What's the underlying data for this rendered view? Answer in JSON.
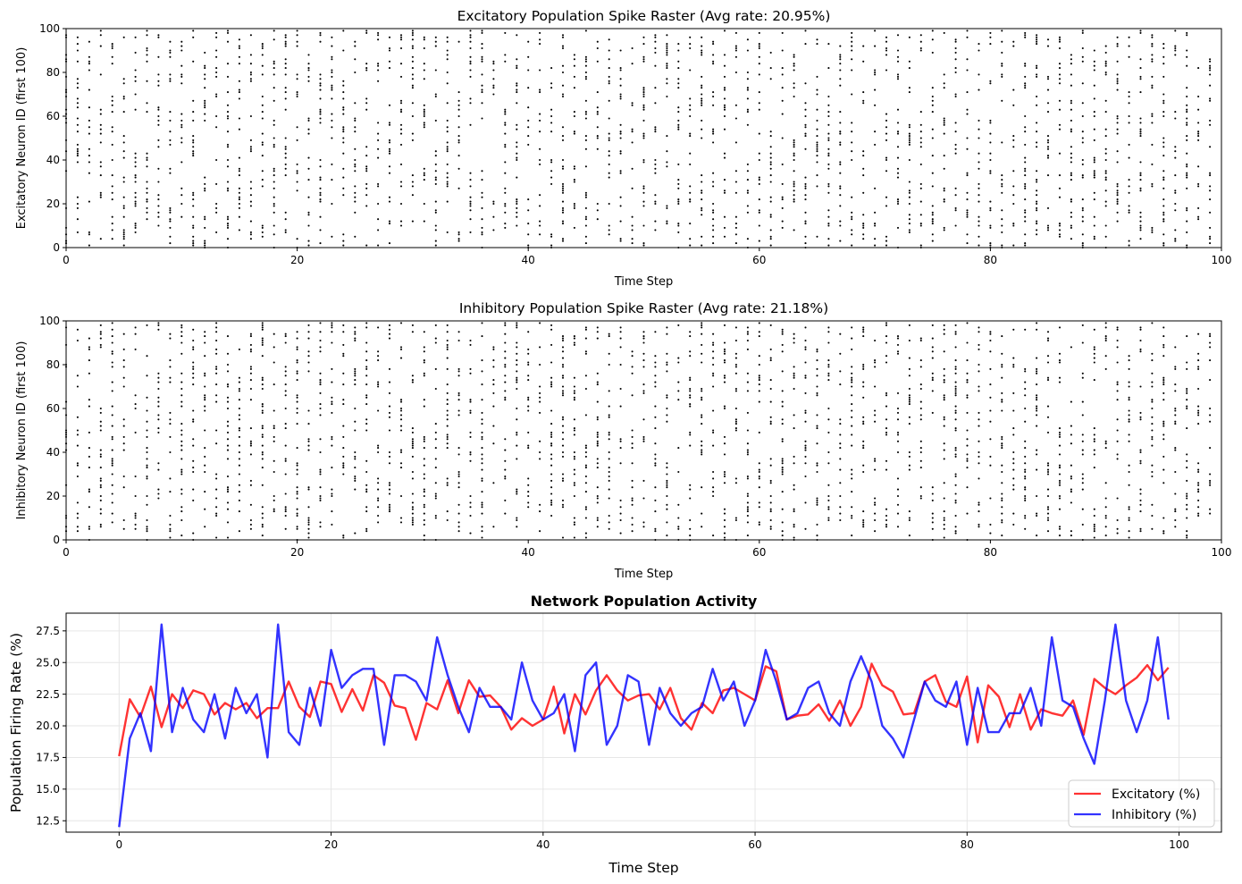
{
  "chart_data": [
    {
      "type": "scatter",
      "title": "Excitatory Population Spike Raster (Avg rate: 20.95%)",
      "xlabel": "Time Step",
      "ylabel": "Excitatory Neuron ID (first 100)",
      "xlim": [
        0,
        100
      ],
      "ylim": [
        0,
        100
      ],
      "xticks": [
        "0",
        "20",
        "40",
        "60",
        "80",
        "100"
      ],
      "yticks": [
        "0",
        "20",
        "40",
        "60",
        "80",
        "100"
      ],
      "grid": false,
      "spike_rate": 0.2095,
      "time_steps": 100,
      "neurons": 100,
      "marker_color": "#000000"
    },
    {
      "type": "scatter",
      "title": "Inhibitory Population Spike Raster (Avg rate: 21.18%)",
      "xlabel": "Time Step",
      "ylabel": "Inhibitory Neuron ID (first 100)",
      "xlim": [
        0,
        100
      ],
      "ylim": [
        0,
        100
      ],
      "xticks": [
        "0",
        "20",
        "40",
        "60",
        "80",
        "100"
      ],
      "yticks": [
        "0",
        "20",
        "40",
        "60",
        "80",
        "100"
      ],
      "grid": false,
      "spike_rate": 0.2118,
      "time_steps": 100,
      "neurons": 100,
      "marker_color": "#000000"
    },
    {
      "type": "line",
      "title": "Network Population Activity",
      "xlabel": "Time Step",
      "ylabel": "Population Firing Rate (%)",
      "xlim": [
        -5,
        104
      ],
      "ylim": [
        11.6,
        28.9
      ],
      "xticks": [
        "0",
        "20",
        "40",
        "60",
        "80",
        "100"
      ],
      "yticks": [
        "12.5",
        "15.0",
        "17.5",
        "20.0",
        "22.5",
        "25.0",
        "27.5"
      ],
      "grid": true,
      "legend_position": "lower-right",
      "series": [
        {
          "name": "Excitatory (%)",
          "color": "#ff0000",
          "values": [
            17.6,
            22.1,
            20.7,
            23.1,
            19.9,
            22.5,
            21.4,
            22.8,
            22.5,
            20.9,
            21.8,
            21.3,
            21.8,
            20.6,
            21.4,
            21.4,
            23.5,
            21.5,
            20.7,
            23.5,
            23.3,
            21.1,
            22.9,
            21.2,
            24.0,
            23.4,
            21.6,
            21.4,
            18.9,
            21.8,
            21.3,
            23.6,
            21.0,
            23.6,
            22.3,
            22.4,
            21.5,
            19.7,
            20.6,
            20.0,
            20.5,
            23.1,
            19.4,
            22.5,
            20.9,
            22.8,
            24.0,
            22.8,
            22.0,
            22.4,
            22.5,
            21.3,
            23.0,
            20.6,
            19.7,
            21.8,
            21.0,
            22.8,
            23.0,
            22.5,
            22.0,
            24.7,
            24.3,
            20.5,
            20.8,
            20.9,
            21.7,
            20.4,
            22.0,
            20.0,
            21.5,
            24.9,
            23.2,
            22.7,
            20.9,
            21.0,
            23.5,
            24.0,
            21.9,
            21.5,
            23.9,
            18.7,
            23.2,
            22.3,
            19.9,
            22.5,
            19.7,
            21.3,
            21.0,
            20.8,
            22.0,
            19.3,
            23.7,
            23.0,
            22.5,
            23.2,
            23.8,
            24.8,
            23.6,
            24.6
          ]
        },
        {
          "name": "Inhibitory (%)",
          "color": "#0000ff",
          "values": [
            12.0,
            19.0,
            21.0,
            18.0,
            28.0,
            19.5,
            23.0,
            20.5,
            19.5,
            22.5,
            19.0,
            23.0,
            21.0,
            22.5,
            17.5,
            28.0,
            19.5,
            18.5,
            23.0,
            20.0,
            26.0,
            23.0,
            24.0,
            24.5,
            24.5,
            18.5,
            24.0,
            24.0,
            23.5,
            22.0,
            27.0,
            24.0,
            21.5,
            19.5,
            23.0,
            21.5,
            21.5,
            20.5,
            25.0,
            22.0,
            20.5,
            21.0,
            22.5,
            18.0,
            24.0,
            25.0,
            18.5,
            20.0,
            24.0,
            23.5,
            18.5,
            23.0,
            21.0,
            20.0,
            21.0,
            21.5,
            24.5,
            22.0,
            23.5,
            20.0,
            22.0,
            26.0,
            23.5,
            20.5,
            21.0,
            23.0,
            23.5,
            21.0,
            20.0,
            23.5,
            25.5,
            23.5,
            20.0,
            19.0,
            17.5,
            20.5,
            23.5,
            22.0,
            21.5,
            23.5,
            18.5,
            23.0,
            19.5,
            19.5,
            21.0,
            21.0,
            23.0,
            20.0,
            27.0,
            22.0,
            21.5,
            19.0,
            17.0,
            22.0,
            28.0,
            22.0,
            19.5,
            22.0,
            27.0,
            20.5
          ]
        }
      ]
    }
  ]
}
